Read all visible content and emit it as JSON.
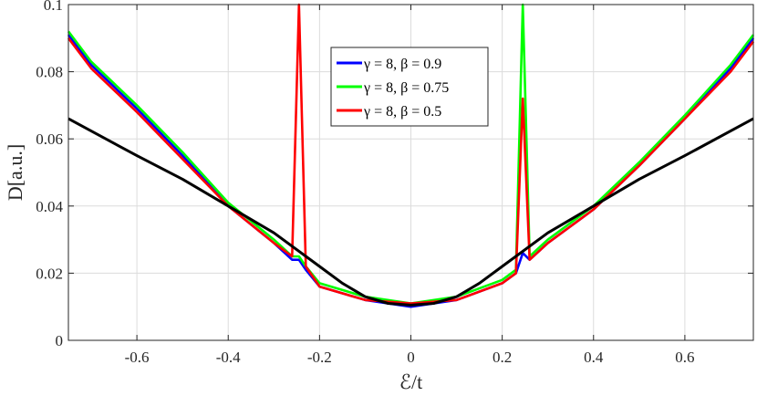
{
  "chart_data": {
    "type": "line",
    "xlabel": "ℰ/t",
    "ylabel": "D[a.u.]",
    "xlim": [
      -0.75,
      0.75
    ],
    "ylim": [
      0,
      0.1
    ],
    "xticks": [
      -0.6,
      -0.4,
      -0.2,
      0,
      0.2,
      0.4,
      0.6
    ],
    "xtick_labels": [
      "-0.6",
      "-0.4",
      "-0.2",
      "0",
      "0.2",
      "0.4",
      "0.6"
    ],
    "yticks": [
      0,
      0.02,
      0.04,
      0.06,
      0.08,
      0.1
    ],
    "ytick_labels": [
      "0",
      "0.02",
      "0.04",
      "0.06",
      "0.08",
      "0.1"
    ],
    "grid": true,
    "legend_position": "top-center",
    "series": [
      {
        "name": "γ = 8, β = 0.9",
        "color": "#0000ff",
        "x": [
          -0.75,
          -0.7,
          -0.6,
          -0.5,
          -0.4,
          -0.3,
          -0.26,
          -0.245,
          -0.23,
          -0.2,
          -0.1,
          0,
          0.1,
          0.2,
          0.23,
          0.245,
          0.26,
          0.3,
          0.4,
          0.5,
          0.6,
          0.7,
          0.75
        ],
        "values": [
          0.091,
          0.082,
          0.069,
          0.055,
          0.04,
          0.029,
          0.024,
          0.024,
          0.021,
          0.016,
          0.012,
          0.01,
          0.012,
          0.017,
          0.02,
          0.026,
          0.024,
          0.029,
          0.039,
          0.052,
          0.066,
          0.081,
          0.09
        ]
      },
      {
        "name": "γ = 8, β = 0.75",
        "color": "#00ff00",
        "x": [
          -0.75,
          -0.7,
          -0.6,
          -0.5,
          -0.4,
          -0.3,
          -0.26,
          -0.245,
          -0.23,
          -0.2,
          -0.1,
          0,
          0.1,
          0.2,
          0.23,
          0.245,
          0.26,
          0.3,
          0.4,
          0.5,
          0.6,
          0.7,
          0.75
        ],
        "values": [
          0.092,
          0.083,
          0.07,
          0.056,
          0.041,
          0.03,
          0.025,
          0.025,
          0.022,
          0.017,
          0.013,
          0.011,
          0.013,
          0.018,
          0.021,
          0.1,
          0.025,
          0.03,
          0.04,
          0.053,
          0.067,
          0.082,
          0.091
        ]
      },
      {
        "name": "γ = 8, β = 0.5",
        "color": "#ff0000",
        "x": [
          -0.75,
          -0.7,
          -0.6,
          -0.5,
          -0.4,
          -0.3,
          -0.26,
          -0.245,
          -0.23,
          -0.2,
          -0.1,
          0,
          0.1,
          0.2,
          0.23,
          0.245,
          0.26,
          0.3,
          0.4,
          0.5,
          0.6,
          0.7,
          0.75
        ],
        "values": [
          0.09,
          0.081,
          0.068,
          0.054,
          0.04,
          0.029,
          0.025,
          0.1,
          0.022,
          0.016,
          0.012,
          0.011,
          0.012,
          0.017,
          0.02,
          0.072,
          0.024,
          0.029,
          0.039,
          0.052,
          0.066,
          0.08,
          0.089
        ]
      },
      {
        "name": "",
        "color": "#000000",
        "x": [
          -0.75,
          -0.6,
          -0.5,
          -0.4,
          -0.3,
          -0.2,
          -0.15,
          -0.1,
          -0.05,
          0,
          0.05,
          0.1,
          0.15,
          0.2,
          0.3,
          0.4,
          0.5,
          0.6,
          0.75
        ],
        "values": [
          0.066,
          0.055,
          0.048,
          0.04,
          0.032,
          0.022,
          0.017,
          0.013,
          0.011,
          0.0105,
          0.011,
          0.013,
          0.017,
          0.022,
          0.032,
          0.04,
          0.048,
          0.055,
          0.066
        ]
      }
    ]
  }
}
